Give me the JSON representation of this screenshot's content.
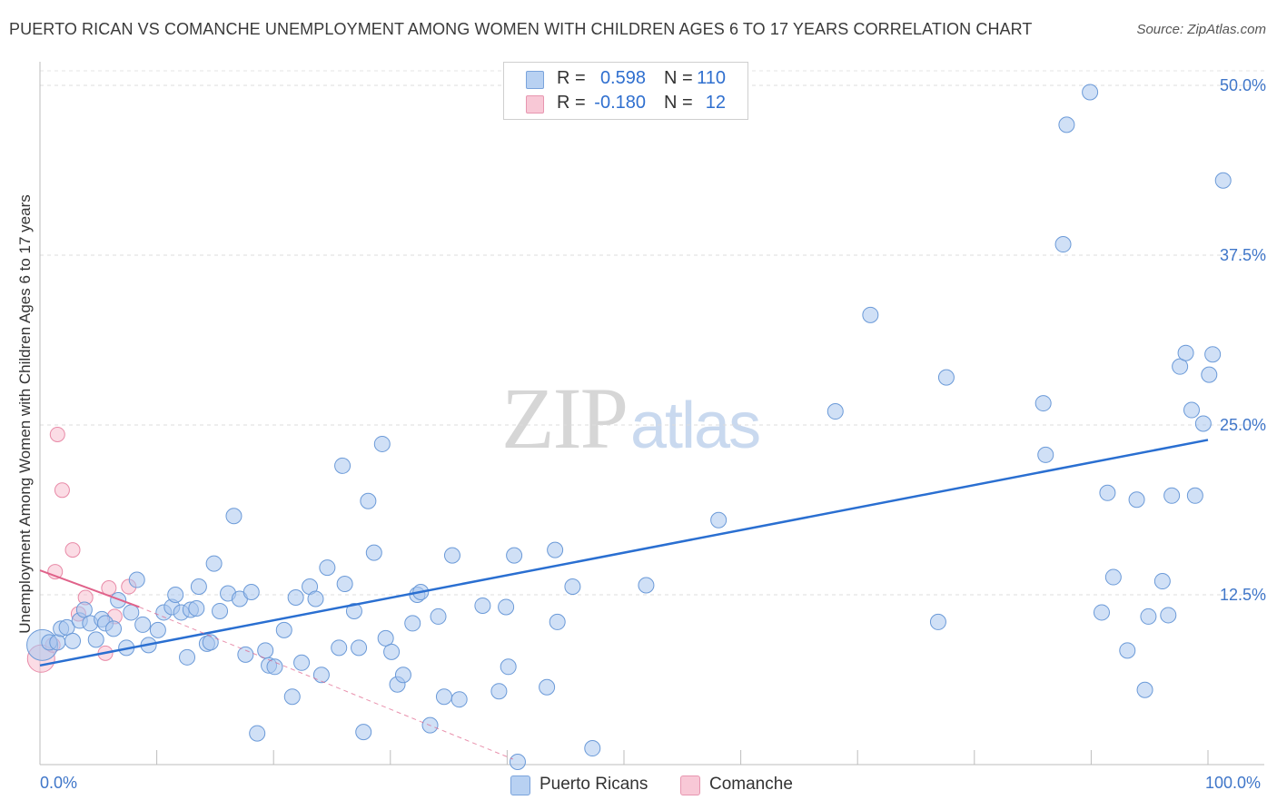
{
  "header": {
    "title": "PUERTO RICAN VS COMANCHE UNEMPLOYMENT AMONG WOMEN WITH CHILDREN AGES 6 TO 17 YEARS CORRELATION CHART",
    "source": "Source: ZipAtlas.com"
  },
  "legend": {
    "rows": [
      {
        "r_label": "R =",
        "r_value": "0.598",
        "n_label": "N =",
        "n_value": "110"
      },
      {
        "r_label": "R =",
        "r_value": "-0.180",
        "n_label": "N =",
        "n_value": "12"
      }
    ]
  },
  "bottom_legend": {
    "series1": "Puerto Ricans",
    "series2": "Comanche"
  },
  "watermark": {
    "zip": "ZIP",
    "atlas": "atlas"
  },
  "colors": {
    "blue_fill": "#a9c6ee",
    "blue_stroke": "#6b9ad8",
    "blue_line": "#2a6fd1",
    "pink_fill": "#f7bfcf",
    "pink_stroke": "#e88aa7",
    "pink_line": "#e0628a",
    "tick_text": "#3f76c9"
  },
  "chart_data": {
    "type": "scatter",
    "title": "PUERTO RICAN VS COMANCHE UNEMPLOYMENT AMONG WOMEN WITH CHILDREN AGES 6 TO 17 YEARS CORRELATION CHART",
    "xlabel": "",
    "ylabel": "Unemployment Among Women with Children Ages 6 to 17 years",
    "xlim": [
      0,
      100
    ],
    "ylim": [
      0,
      50
    ],
    "x_tick_labels": [
      "0.0%",
      "100.0%"
    ],
    "y_ticks": [
      12.5,
      25.0,
      37.5,
      50.0
    ],
    "y_tick_labels": [
      "12.5%",
      "25.0%",
      "37.5%",
      "50.0%"
    ],
    "grid": "horizontal dashed",
    "series": [
      {
        "name": "Puerto Ricans",
        "r": 0.598,
        "n": 110,
        "trend": {
          "x": [
            0,
            100
          ],
          "y": [
            7.3,
            23.9
          ]
        },
        "points": [
          [
            0.2,
            8.8
          ],
          [
            0.8,
            9.0
          ],
          [
            1.5,
            9.0
          ],
          [
            1.8,
            10.0
          ],
          [
            2.3,
            10.1
          ],
          [
            2.8,
            9.1
          ],
          [
            3.4,
            10.6
          ],
          [
            3.8,
            11.4
          ],
          [
            4.3,
            10.4
          ],
          [
            4.8,
            9.2
          ],
          [
            5.3,
            10.7
          ],
          [
            5.6,
            10.4
          ],
          [
            6.3,
            10.0
          ],
          [
            6.7,
            12.1
          ],
          [
            7.4,
            8.6
          ],
          [
            7.8,
            11.2
          ],
          [
            8.3,
            13.6
          ],
          [
            8.8,
            10.3
          ],
          [
            9.3,
            8.8
          ],
          [
            10.1,
            9.9
          ],
          [
            10.6,
            11.2
          ],
          [
            11.3,
            11.6
          ],
          [
            11.6,
            12.5
          ],
          [
            12.1,
            11.2
          ],
          [
            12.6,
            7.9
          ],
          [
            12.9,
            11.4
          ],
          [
            13.4,
            11.5
          ],
          [
            13.6,
            13.1
          ],
          [
            14.3,
            8.9
          ],
          [
            14.6,
            9.0
          ],
          [
            14.9,
            14.8
          ],
          [
            15.4,
            11.3
          ],
          [
            16.1,
            12.6
          ],
          [
            16.6,
            18.3
          ],
          [
            17.1,
            12.2
          ],
          [
            17.6,
            8.1
          ],
          [
            18.1,
            12.7
          ],
          [
            18.6,
            2.3
          ],
          [
            19.3,
            8.4
          ],
          [
            19.6,
            7.3
          ],
          [
            20.1,
            7.2
          ],
          [
            20.9,
            9.9
          ],
          [
            21.6,
            5.0
          ],
          [
            21.9,
            12.3
          ],
          [
            22.4,
            7.5
          ],
          [
            23.1,
            13.1
          ],
          [
            23.6,
            12.2
          ],
          [
            24.1,
            6.6
          ],
          [
            24.6,
            14.5
          ],
          [
            25.6,
            8.6
          ],
          [
            25.9,
            22.0
          ],
          [
            26.1,
            13.3
          ],
          [
            26.9,
            11.3
          ],
          [
            27.3,
            8.6
          ],
          [
            27.7,
            2.4
          ],
          [
            28.1,
            19.4
          ],
          [
            28.6,
            15.6
          ],
          [
            29.3,
            23.6
          ],
          [
            29.6,
            9.3
          ],
          [
            30.1,
            8.3
          ],
          [
            30.6,
            5.9
          ],
          [
            31.1,
            6.6
          ],
          [
            31.9,
            10.4
          ],
          [
            32.3,
            12.5
          ],
          [
            32.6,
            12.7
          ],
          [
            33.4,
            2.9
          ],
          [
            34.1,
            10.9
          ],
          [
            34.6,
            5.0
          ],
          [
            35.3,
            15.4
          ],
          [
            35.9,
            4.8
          ],
          [
            37.9,
            11.7
          ],
          [
            39.3,
            5.4
          ],
          [
            39.9,
            11.6
          ],
          [
            40.1,
            7.2
          ],
          [
            40.6,
            15.4
          ],
          [
            40.9,
            0.2
          ],
          [
            43.4,
            5.7
          ],
          [
            44.1,
            15.8
          ],
          [
            44.3,
            10.5
          ],
          [
            45.6,
            13.1
          ],
          [
            47.3,
            1.2
          ],
          [
            51.9,
            13.2
          ],
          [
            58.1,
            18.0
          ],
          [
            68.1,
            26.0
          ],
          [
            71.1,
            33.1
          ],
          [
            76.9,
            10.5
          ],
          [
            77.6,
            28.5
          ],
          [
            85.9,
            26.6
          ],
          [
            86.1,
            22.8
          ],
          [
            87.9,
            47.1
          ],
          [
            87.6,
            38.3
          ],
          [
            89.9,
            49.5
          ],
          [
            90.9,
            11.2
          ],
          [
            91.4,
            20.0
          ],
          [
            91.9,
            13.8
          ],
          [
            93.1,
            8.4
          ],
          [
            93.9,
            19.5
          ],
          [
            94.6,
            5.5
          ],
          [
            94.9,
            10.9
          ],
          [
            96.1,
            13.5
          ],
          [
            96.6,
            11.0
          ],
          [
            96.9,
            19.8
          ],
          [
            97.6,
            29.3
          ],
          [
            98.1,
            30.3
          ],
          [
            98.6,
            26.1
          ],
          [
            98.9,
            19.8
          ],
          [
            99.6,
            25.1
          ],
          [
            100.1,
            28.7
          ],
          [
            100.4,
            30.2
          ],
          [
            101.3,
            43.0
          ]
        ]
      },
      {
        "name": "Comanche",
        "r": -0.18,
        "n": 12,
        "trend_solid": {
          "x": [
            0,
            8.5
          ],
          "y": [
            14.3,
            11.6
          ]
        },
        "trend_dashed": {
          "x": [
            8.5,
            40.5
          ],
          "y": [
            11.6,
            0.4
          ]
        },
        "points": [
          [
            0.1,
            7.8
          ],
          [
            1.1,
            8.8
          ],
          [
            1.3,
            14.2
          ],
          [
            1.5,
            24.3
          ],
          [
            1.9,
            20.2
          ],
          [
            2.8,
            15.8
          ],
          [
            3.3,
            11.1
          ],
          [
            3.9,
            12.3
          ],
          [
            5.6,
            8.2
          ],
          [
            5.9,
            13.0
          ],
          [
            6.4,
            10.9
          ],
          [
            7.6,
            13.1
          ]
        ]
      }
    ]
  }
}
